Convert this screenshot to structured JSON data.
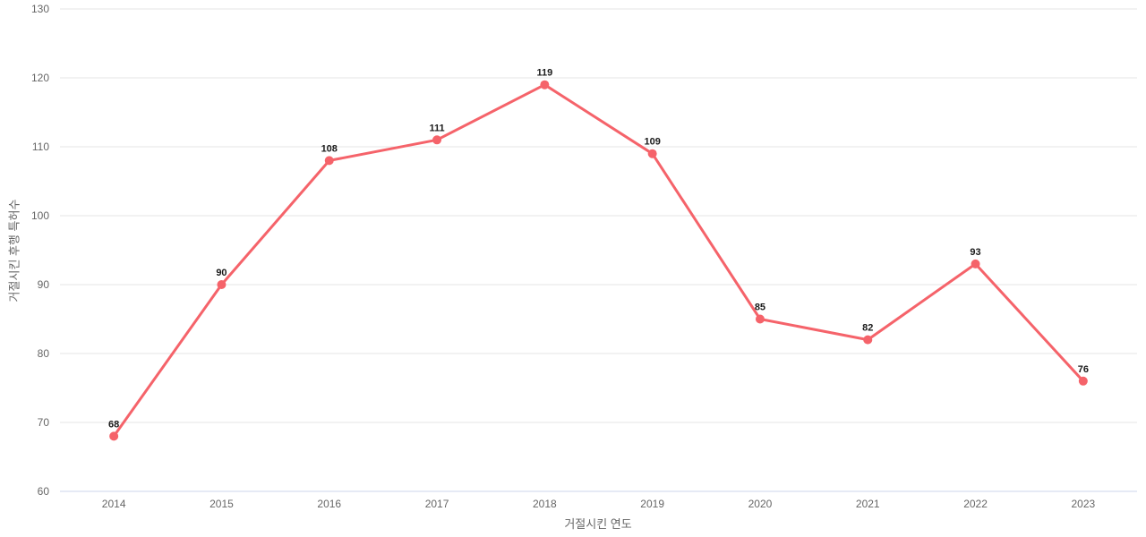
{
  "chart_data": {
    "type": "line",
    "title": "",
    "xlabel": "거절시킨 연도",
    "ylabel": "거절시킨 후행 특허수",
    "categories": [
      "2014",
      "2015",
      "2016",
      "2017",
      "2018",
      "2019",
      "2020",
      "2021",
      "2022",
      "2023"
    ],
    "values": [
      68,
      90,
      108,
      111,
      119,
      109,
      85,
      82,
      93,
      76
    ],
    "ylim": [
      60,
      130
    ],
    "yticks": [
      60,
      70,
      80,
      90,
      100,
      110,
      120,
      130
    ],
    "grid": "horizontal-only",
    "legend": "none",
    "data_labels_shown": true,
    "colors": {
      "series": "#f5636a",
      "gridline": "#e6e6e6",
      "axis_line": "#ccd6eb",
      "tick_label": "#666666",
      "axis_title": "#666666",
      "data_label": "#1a1a1a",
      "background": "#ffffff"
    }
  }
}
